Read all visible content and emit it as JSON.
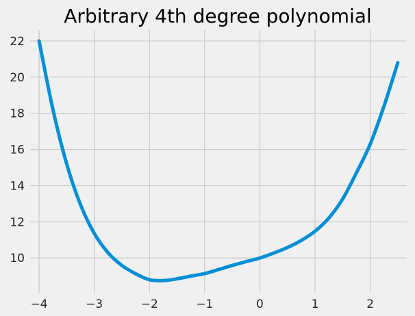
{
  "chart_data": {
    "type": "line",
    "title": "Arbitrary 4th degree polynomial",
    "xlabel": "",
    "ylabel": "",
    "xlim": [
      -4.1625,
      2.6625
    ],
    "ylim": [
      8.08,
      22.6
    ],
    "xticks": [
      -4,
      -3,
      -2,
      -1,
      0,
      1,
      2
    ],
    "xtick_labels": [
      "−4",
      "−3",
      "−2",
      "−1",
      "0",
      "1",
      "2"
    ],
    "yticks": [
      10,
      12,
      14,
      16,
      18,
      20,
      22
    ],
    "ytick_labels": [
      "10",
      "12",
      "14",
      "16",
      "18",
      "20",
      "22"
    ],
    "grid": true,
    "series": [
      {
        "color": "#008fd5",
        "x": [
          -4.0,
          -3.75,
          -3.5,
          -3.25,
          -3.0,
          -2.75,
          -2.5,
          -2.25,
          -2.0,
          -1.75,
          -1.5,
          -1.25,
          -1.0,
          -0.75,
          -0.5,
          -0.25,
          0.0,
          0.25,
          0.5,
          0.75,
          1.0,
          1.25,
          1.5,
          1.75,
          2.0,
          2.25,
          2.5
        ],
        "y": [
          22.0,
          18.22,
          15.2,
          12.95,
          11.36,
          10.29,
          9.59,
          9.13,
          8.8,
          8.75,
          8.85,
          9.0,
          9.14,
          9.36,
          9.59,
          9.8,
          10.0,
          10.27,
          10.58,
          10.97,
          11.48,
          12.21,
          13.26,
          14.71,
          16.3,
          18.4,
          20.8
        ]
      }
    ]
  }
}
